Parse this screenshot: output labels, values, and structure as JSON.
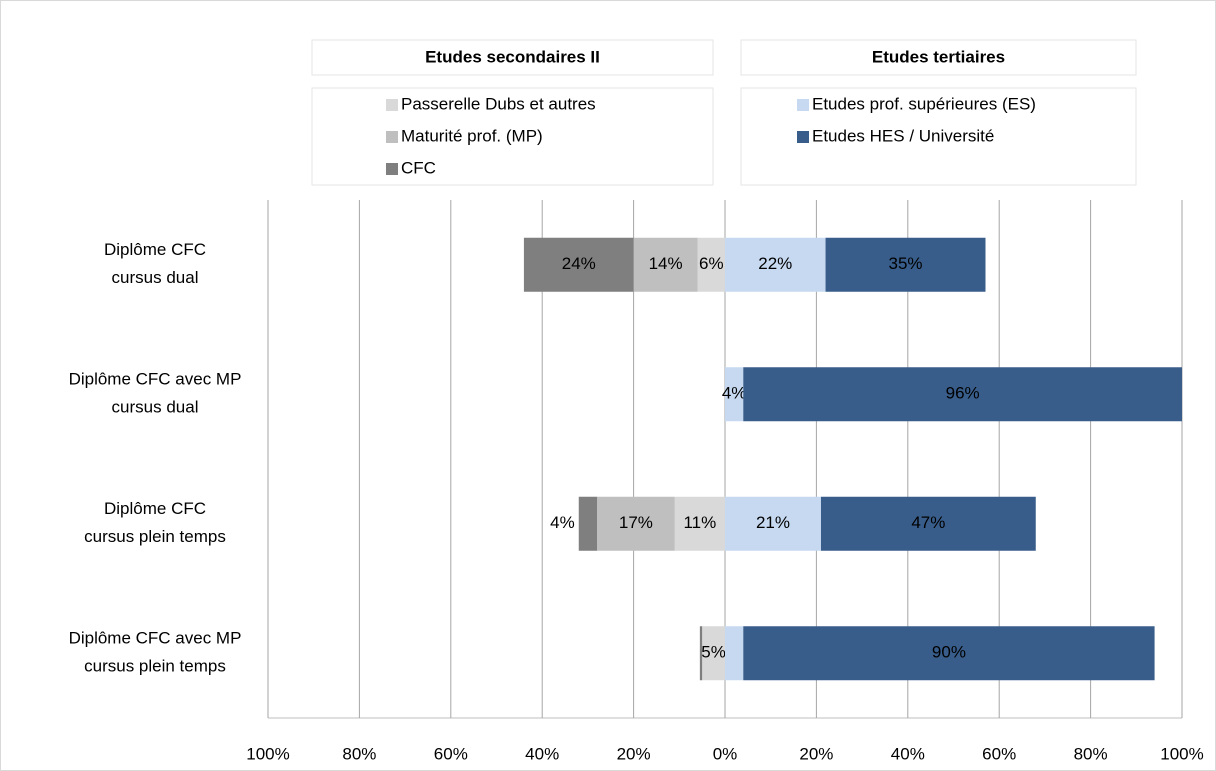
{
  "chart_data": {
    "type": "diverging-bar",
    "categories": [
      [
        "Diplôme CFC",
        "cursus dual"
      ],
      [
        "Diplôme CFC avec MP",
        "cursus dual"
      ],
      [
        "Diplôme CFC",
        "cursus plein temps"
      ],
      [
        "Diplôme CFC avec MP",
        "cursus plein temps"
      ]
    ],
    "groups": [
      {
        "title": "Etudes secondaires II",
        "series": [
          {
            "name": "Passerelle Dubs et autres",
            "color": "#d9d9d9",
            "label_color": "#000000",
            "values": [
              6,
              0,
              11,
              5
            ],
            "value_labels": [
              "6%",
              null,
              "11%",
              "5%"
            ]
          },
          {
            "name": "Maturité prof. (MP)",
            "color": "#bfbfbf",
            "label_color": "#000000",
            "values": [
              14,
              0,
              17,
              0
            ],
            "value_labels": [
              "14%",
              null,
              "17%",
              null
            ]
          },
          {
            "name": "CFC",
            "color": "#7f7f7f",
            "label_color": "#ffffff",
            "values": [
              24,
              0,
              4,
              0.5
            ],
            "value_labels": [
              "24%",
              null,
              "4%",
              null
            ]
          }
        ]
      },
      {
        "title": "Etudes tertiaires",
        "series": [
          {
            "name": "Etudes prof. supérieures (ES)",
            "color": "#c6d9f1",
            "label_color": "#000000",
            "values": [
              22,
              4,
              21,
              4
            ],
            "value_labels": [
              "22%",
              "4%",
              "21%",
              null
            ]
          },
          {
            "name": "Etudes HES / Université",
            "color": "#385d8a",
            "label_color": "#ffffff",
            "values": [
              35,
              96,
              47,
              90
            ],
            "value_labels": [
              "35%",
              "96%",
              "47%",
              "90%"
            ]
          }
        ]
      }
    ],
    "xlim": [
      -100,
      100
    ],
    "xticks": [
      {
        "value": -100,
        "label": "100%"
      },
      {
        "value": -80,
        "label": "80%"
      },
      {
        "value": -60,
        "label": "60%"
      },
      {
        "value": -40,
        "label": "40%"
      },
      {
        "value": -20,
        "label": "20%"
      },
      {
        "value": 0,
        "label": "0%"
      },
      {
        "value": 20,
        "label": "20%"
      },
      {
        "value": 40,
        "label": "40%"
      },
      {
        "value": 60,
        "label": "60%"
      },
      {
        "value": 80,
        "label": "80%"
      },
      {
        "value": 100,
        "label": "100%"
      }
    ],
    "grid": true
  }
}
